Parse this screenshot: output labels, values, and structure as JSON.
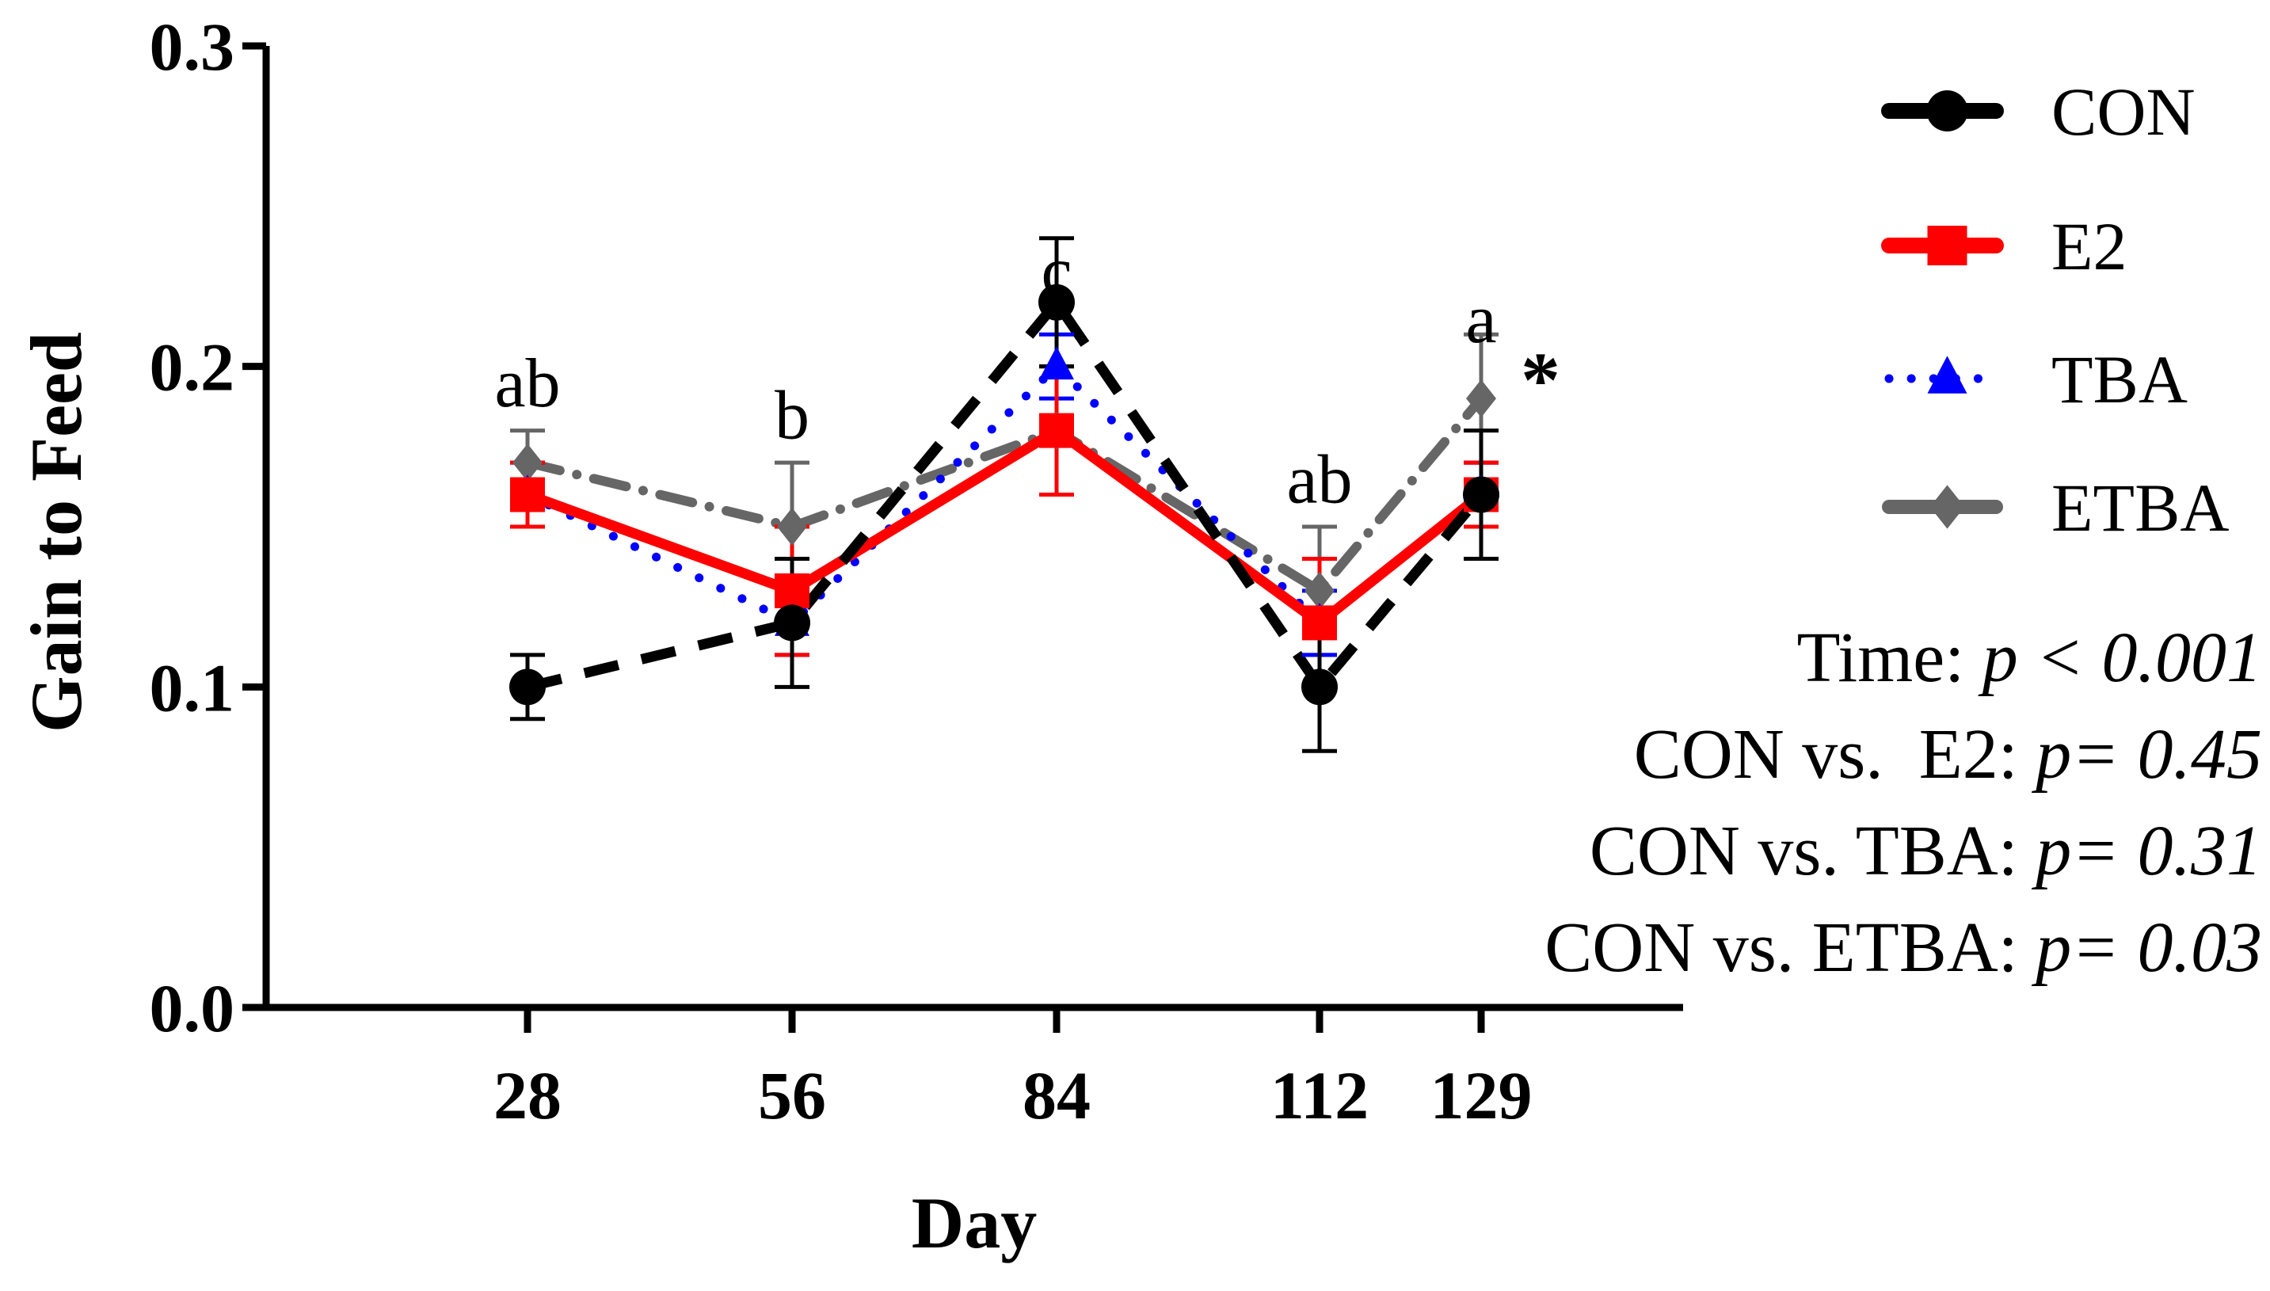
{
  "chart_data": {
    "type": "line",
    "xlabel": "Day",
    "ylabel": "Gain to Feed",
    "x": [
      28,
      56,
      84,
      112,
      129
    ],
    "x_ticks": [
      "28",
      "56",
      "84",
      "112",
      "129"
    ],
    "ylim": [
      0.0,
      0.3
    ],
    "y_ticks": [
      "0.0",
      "0.1",
      "0.2",
      "0.3"
    ],
    "grid": false,
    "legend_position": "top-right",
    "series": [
      {
        "name": "CON",
        "values": [
          0.1,
          0.12,
          0.22,
          0.1,
          0.16
        ],
        "errors": [
          0.01,
          0.02,
          0.02,
          0.02,
          0.02
        ],
        "color": "#000000",
        "marker": "circle",
        "line_style": "dashed"
      },
      {
        "name": "E2",
        "values": [
          0.16,
          0.13,
          0.18,
          0.12,
          0.16
        ],
        "errors": [
          0.01,
          0.02,
          0.02,
          0.02,
          0.01
        ],
        "color": "#ff0000",
        "marker": "square",
        "line_style": "solid"
      },
      {
        "name": "TBA",
        "values": [
          0.16,
          0.12,
          0.2,
          0.12,
          0.16
        ],
        "errors": [
          0.01,
          0.01,
          0.01,
          0.01,
          0.01
        ],
        "color": "#0000ff",
        "marker": "triangle",
        "line_style": "dotted"
      },
      {
        "name": "ETBA",
        "values": [
          0.17,
          0.15,
          0.18,
          0.13,
          0.19
        ],
        "errors": [
          0.01,
          0.02,
          0.02,
          0.02,
          0.02
        ],
        "color": "#666666",
        "marker": "diamond",
        "line_style": "dash-dot"
      }
    ],
    "annotations": [
      {
        "text": "ab",
        "x": 28,
        "y": 0.195
      },
      {
        "text": "b",
        "x": 56,
        "y": 0.185
      },
      {
        "text": "c",
        "x": 84,
        "y": 0.23
      },
      {
        "text": "ab",
        "x": 112,
        "y": 0.165
      },
      {
        "text": "a",
        "x": 129,
        "y": 0.215
      },
      {
        "text": "*",
        "x": 135,
        "y": 0.195
      }
    ],
    "stats": [
      {
        "label": "Time: ",
        "value": "p < 0.001"
      },
      {
        "label": "CON vs.  E2: ",
        "value": "p= 0.45"
      },
      {
        "label": "CON vs. TBA: ",
        "value": "p= 0.31"
      },
      {
        "label": "CON vs. ETBA: ",
        "value": "p= 0.03"
      }
    ]
  }
}
